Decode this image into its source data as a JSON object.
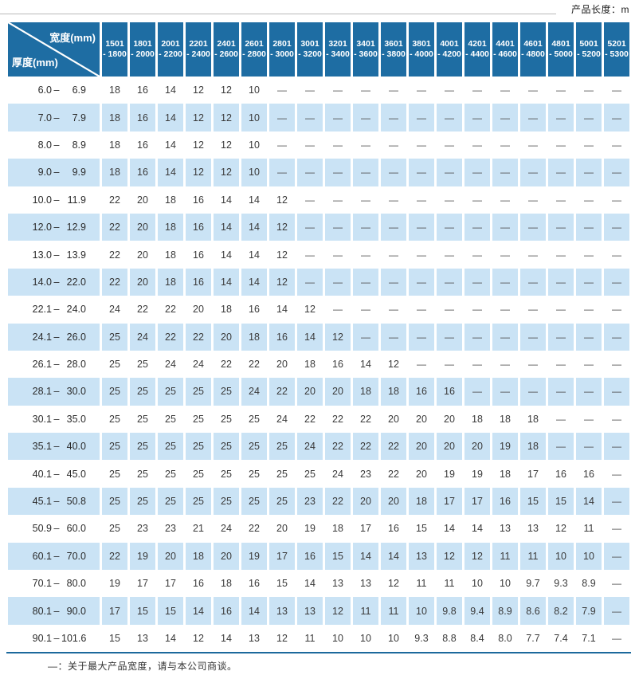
{
  "page": {
    "top_right_label": "产品长度：m",
    "footnote": "—：关于最大产品宽度，请与本公司商谈。"
  },
  "colors": {
    "header_blue": "#1e6da3",
    "row_alt_blue": "#cae3f5",
    "rule_blue": "#1c699c",
    "text_dark": "#3a3a3a"
  },
  "table": {
    "corner": {
      "top_label": "宽度(mm)",
      "bottom_label": "厚度(mm)"
    },
    "columns": [
      {
        "from": "1501",
        "to": "1800"
      },
      {
        "from": "1801",
        "to": "2000"
      },
      {
        "from": "2001",
        "to": "2200"
      },
      {
        "from": "2201",
        "to": "2400"
      },
      {
        "from": "2401",
        "to": "2600"
      },
      {
        "from": "2601",
        "to": "2800"
      },
      {
        "from": "2801",
        "to": "3000"
      },
      {
        "from": "3001",
        "to": "3200"
      },
      {
        "from": "3201",
        "to": "3400"
      },
      {
        "from": "3401",
        "to": "3600"
      },
      {
        "from": "3601",
        "to": "3800"
      },
      {
        "from": "3801",
        "to": "4000"
      },
      {
        "from": "4001",
        "to": "4200"
      },
      {
        "from": "4201",
        "to": "4400"
      },
      {
        "from": "4401",
        "to": "4600"
      },
      {
        "from": "4601",
        "to": "4800"
      },
      {
        "from": "4801",
        "to": "5000"
      },
      {
        "from": "5001",
        "to": "5200"
      },
      {
        "from": "5201",
        "to": "5300"
      }
    ],
    "rows": [
      {
        "from": "6.0",
        "to": "6.9",
        "values": [
          "18",
          "16",
          "14",
          "12",
          "12",
          "10",
          "—",
          "—",
          "—",
          "—",
          "—",
          "—",
          "—",
          "—",
          "—",
          "—",
          "—",
          "—",
          "—"
        ]
      },
      {
        "from": "7.0",
        "to": "7.9",
        "values": [
          "18",
          "16",
          "14",
          "12",
          "12",
          "10",
          "—",
          "—",
          "—",
          "—",
          "—",
          "—",
          "—",
          "—",
          "—",
          "—",
          "—",
          "—",
          "—"
        ]
      },
      {
        "from": "8.0",
        "to": "8.9",
        "values": [
          "18",
          "16",
          "14",
          "12",
          "12",
          "10",
          "—",
          "—",
          "—",
          "—",
          "—",
          "—",
          "—",
          "—",
          "—",
          "—",
          "—",
          "—",
          "—"
        ]
      },
      {
        "from": "9.0",
        "to": "9.9",
        "values": [
          "18",
          "16",
          "14",
          "12",
          "12",
          "10",
          "—",
          "—",
          "—",
          "—",
          "—",
          "—",
          "—",
          "—",
          "—",
          "—",
          "—",
          "—",
          "—"
        ]
      },
      {
        "from": "10.0",
        "to": "11.9",
        "values": [
          "22",
          "20",
          "18",
          "16",
          "14",
          "14",
          "12",
          "—",
          "—",
          "—",
          "—",
          "—",
          "—",
          "—",
          "—",
          "—",
          "—",
          "—",
          "—"
        ]
      },
      {
        "from": "12.0",
        "to": "12.9",
        "values": [
          "22",
          "20",
          "18",
          "16",
          "14",
          "14",
          "12",
          "—",
          "—",
          "—",
          "—",
          "—",
          "—",
          "—",
          "—",
          "—",
          "—",
          "—",
          "—"
        ]
      },
      {
        "from": "13.0",
        "to": "13.9",
        "values": [
          "22",
          "20",
          "18",
          "16",
          "14",
          "14",
          "12",
          "—",
          "—",
          "—",
          "—",
          "—",
          "—",
          "—",
          "—",
          "—",
          "—",
          "—",
          "—"
        ]
      },
      {
        "from": "14.0",
        "to": "22.0",
        "values": [
          "22",
          "20",
          "18",
          "16",
          "14",
          "14",
          "12",
          "—",
          "—",
          "—",
          "—",
          "—",
          "—",
          "—",
          "—",
          "—",
          "—",
          "—",
          "—"
        ]
      },
      {
        "from": "22.1",
        "to": "24.0",
        "values": [
          "24",
          "22",
          "22",
          "20",
          "18",
          "16",
          "14",
          "12",
          "—",
          "—",
          "—",
          "—",
          "—",
          "—",
          "—",
          "—",
          "—",
          "—",
          "—"
        ]
      },
      {
        "from": "24.1",
        "to": "26.0",
        "values": [
          "25",
          "24",
          "22",
          "22",
          "20",
          "18",
          "16",
          "14",
          "12",
          "—",
          "—",
          "—",
          "—",
          "—",
          "—",
          "—",
          "—",
          "—",
          "—"
        ]
      },
      {
        "from": "26.1",
        "to": "28.0",
        "values": [
          "25",
          "25",
          "24",
          "24",
          "22",
          "22",
          "20",
          "18",
          "16",
          "14",
          "12",
          "—",
          "—",
          "—",
          "—",
          "—",
          "—",
          "—",
          "—"
        ]
      },
      {
        "from": "28.1",
        "to": "30.0",
        "values": [
          "25",
          "25",
          "25",
          "25",
          "25",
          "24",
          "22",
          "20",
          "20",
          "18",
          "18",
          "16",
          "16",
          "—",
          "—",
          "—",
          "—",
          "—",
          "—"
        ]
      },
      {
        "from": "30.1",
        "to": "35.0",
        "values": [
          "25",
          "25",
          "25",
          "25",
          "25",
          "25",
          "24",
          "22",
          "22",
          "22",
          "20",
          "20",
          "20",
          "18",
          "18",
          "18",
          "—",
          "—",
          "—"
        ]
      },
      {
        "from": "35.1",
        "to": "40.0",
        "values": [
          "25",
          "25",
          "25",
          "25",
          "25",
          "25",
          "25",
          "24",
          "22",
          "22",
          "22",
          "20",
          "20",
          "20",
          "19",
          "18",
          "—",
          "—",
          "—"
        ]
      },
      {
        "from": "40.1",
        "to": "45.0",
        "values": [
          "25",
          "25",
          "25",
          "25",
          "25",
          "25",
          "25",
          "25",
          "24",
          "23",
          "22",
          "20",
          "19",
          "19",
          "18",
          "17",
          "16",
          "16",
          "—"
        ]
      },
      {
        "from": "45.1",
        "to": "50.8",
        "values": [
          "25",
          "25",
          "25",
          "25",
          "25",
          "25",
          "25",
          "23",
          "22",
          "20",
          "20",
          "18",
          "17",
          "17",
          "16",
          "15",
          "15",
          "14",
          "—"
        ]
      },
      {
        "from": "50.9",
        "to": "60.0",
        "values": [
          "25",
          "23",
          "23",
          "21",
          "24",
          "22",
          "20",
          "19",
          "18",
          "17",
          "16",
          "15",
          "14",
          "14",
          "13",
          "13",
          "12",
          "11",
          "—"
        ]
      },
      {
        "from": "60.1",
        "to": "70.0",
        "values": [
          "22",
          "19",
          "20",
          "18",
          "20",
          "19",
          "17",
          "16",
          "15",
          "14",
          "14",
          "13",
          "12",
          "12",
          "11",
          "11",
          "10",
          "10",
          "—"
        ]
      },
      {
        "from": "70.1",
        "to": "80.0",
        "values": [
          "19",
          "17",
          "17",
          "16",
          "18",
          "16",
          "15",
          "14",
          "13",
          "13",
          "12",
          "11",
          "11",
          "10",
          "10",
          "9.7",
          "9.3",
          "8.9",
          "—"
        ]
      },
      {
        "from": "80.1",
        "to": "90.0",
        "values": [
          "17",
          "15",
          "15",
          "14",
          "16",
          "14",
          "13",
          "13",
          "12",
          "11",
          "11",
          "10",
          "9.8",
          "9.4",
          "8.9",
          "8.6",
          "8.2",
          "7.9",
          "—"
        ]
      },
      {
        "from": "90.1",
        "to": "101.6",
        "values": [
          "15",
          "13",
          "14",
          "12",
          "14",
          "13",
          "12",
          "11",
          "10",
          "10",
          "10",
          "9.3",
          "8.8",
          "8.4",
          "8.0",
          "7.7",
          "7.4",
          "7.1",
          "—"
        ]
      }
    ]
  },
  "chart_data": {
    "type": "table",
    "title": "产品长度：m",
    "row_header": "厚度(mm)",
    "column_header": "宽度(mm)",
    "note": "—：关于最大产品宽度，请与本公司商谈。"
  }
}
